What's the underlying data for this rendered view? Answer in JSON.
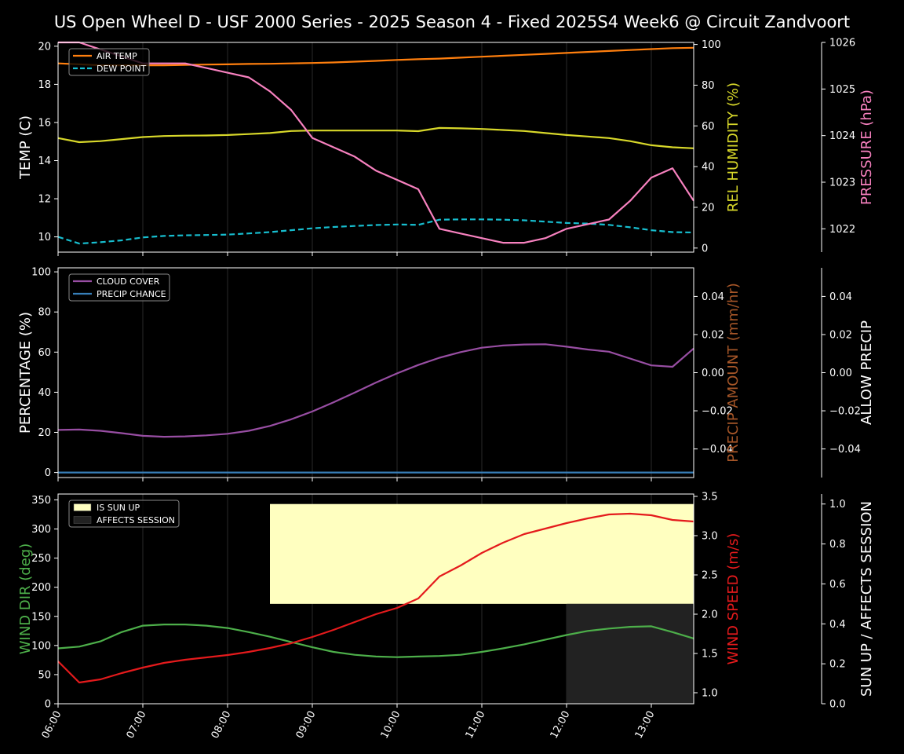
{
  "title": "US Open Wheel D - USF 2000 Series  - 2025 Season 4 - Fixed 2025S4 Week6 @ Circuit Zandvoort",
  "time_labels": [
    "06:00",
    "07:00",
    "08:00",
    "09:00",
    "10:00",
    "11:00",
    "12:00",
    "13:00"
  ],
  "colors": {
    "air_temp": "#ff7f0e",
    "dew_point": "#17becf",
    "humidity": "#d8d82a",
    "pressure": "#f781bf",
    "cloud": "#984ea3",
    "precip_chance": "#377eb8",
    "precip_amount": "#a65628",
    "wind_dir": "#4daf4a",
    "wind_speed": "#e41a1c",
    "sun_up": "#ffffc0",
    "affects_session": "#222222"
  },
  "chart_data": [
    {
      "type": "line",
      "panel": "temperature",
      "x": [
        "06:00",
        "06:15",
        "06:30",
        "06:45",
        "07:00",
        "07:15",
        "07:30",
        "07:45",
        "08:00",
        "08:15",
        "08:30",
        "08:45",
        "09:00",
        "09:15",
        "09:30",
        "09:45",
        "10:00",
        "10:15",
        "10:30",
        "10:45",
        "11:00",
        "11:15",
        "11:30",
        "11:45",
        "12:00",
        "12:15",
        "12:30",
        "12:45",
        "13:00",
        "13:15",
        "13:30"
      ],
      "ylabel_left": "TEMP (C)",
      "ylabel_right": "REL HUMIDITY (%)",
      "ylabel_far": "PRESSURE (hPa)",
      "ylim_left": [
        9.2,
        20.2
      ],
      "ylim_right": [
        -2,
        101
      ],
      "ylim_far": [
        1021.5,
        1026
      ],
      "yticks_left": [
        "10",
        "12",
        "14",
        "16",
        "18",
        "20"
      ],
      "yticks_right": [
        "0",
        "20",
        "40",
        "60",
        "80",
        "100"
      ],
      "yticks_far": [
        "1022",
        "1023",
        "1024",
        "1025",
        "1026"
      ],
      "legend": [
        "AIR TEMP",
        "DEW POINT"
      ],
      "legend_position": "top-left",
      "series": [
        {
          "name": "AIR TEMP",
          "axis": "left",
          "values": [
            19.1,
            19.05,
            19.0,
            19.0,
            19.0,
            19.0,
            19.02,
            19.04,
            19.05,
            19.07,
            19.08,
            19.1,
            19.12,
            19.15,
            19.19,
            19.23,
            19.28,
            19.32,
            19.35,
            19.4,
            19.45,
            19.5,
            19.55,
            19.6,
            19.65,
            19.7,
            19.75,
            19.8,
            19.85,
            19.9,
            19.92
          ]
        },
        {
          "name": "DEW POINT",
          "axis": "left",
          "values": [
            10.0,
            9.65,
            9.72,
            9.82,
            9.97,
            10.05,
            10.08,
            10.1,
            10.12,
            10.18,
            10.25,
            10.35,
            10.45,
            10.52,
            10.57,
            10.62,
            10.65,
            10.63,
            10.9,
            10.92,
            10.92,
            10.9,
            10.87,
            10.8,
            10.73,
            10.7,
            10.63,
            10.5,
            10.35,
            10.25,
            10.23
          ]
        },
        {
          "axis": "right",
          "values": [
            54,
            52,
            52.5,
            53.5,
            54.5,
            55,
            55.2,
            55.3,
            55.5,
            56,
            56.5,
            57.5,
            57.7,
            57.7,
            57.7,
            57.7,
            57.7,
            57.4,
            59,
            58.8,
            58.5,
            58,
            57.5,
            56.5,
            55.5,
            54.8,
            54,
            52.5,
            50.5,
            49.5,
            49
          ]
        },
        {
          "axis": "far",
          "values": [
            1026,
            1026,
            1025.85,
            1025.7,
            1025.55,
            1025.55,
            1025.55,
            1025.45,
            1025.35,
            1025.25,
            1024.95,
            1024.55,
            1023.95,
            1023.75,
            1023.55,
            1023.25,
            1023.05,
            1022.85,
            1022.0,
            1021.9,
            1021.8,
            1021.7,
            1021.7,
            1021.8,
            1022.0,
            1022.1,
            1022.2,
            1022.6,
            1023.1,
            1023.3,
            1022.6
          ]
        }
      ]
    },
    {
      "type": "line",
      "panel": "precipitation",
      "x": [
        "06:00",
        "06:15",
        "06:30",
        "06:45",
        "07:00",
        "07:15",
        "07:30",
        "07:45",
        "08:00",
        "08:15",
        "08:30",
        "08:45",
        "09:00",
        "09:15",
        "09:30",
        "09:45",
        "10:00",
        "10:15",
        "10:30",
        "10:45",
        "11:00",
        "11:15",
        "11:30",
        "11:45",
        "12:00",
        "12:15",
        "12:30",
        "12:45",
        "13:00",
        "13:15",
        "13:30"
      ],
      "ylabel_left": "PERCENTAGE (%)",
      "ylabel_right": "PRECIP AMOUNT (mm/hr)",
      "ylabel_far": "ALLOW PRECIP",
      "ylim_left": [
        -2.5,
        102
      ],
      "ylim_right": [
        -0.055,
        0.055
      ],
      "ylim_far": [
        -0.055,
        0.055
      ],
      "yticks_left": [
        "0",
        "20",
        "40",
        "60",
        "80",
        "100"
      ],
      "yticks_right": [
        "−0.04",
        "−0.02",
        "0.00",
        "0.02",
        "0.04"
      ],
      "yticks_far": [
        "−0.04",
        "−0.02",
        "0.00",
        "0.02",
        "0.04"
      ],
      "legend": [
        "CLOUD COVER",
        "PRECIP CHANCE"
      ],
      "legend_position": "top-left",
      "series": [
        {
          "name": "CLOUD COVER",
          "axis": "left",
          "values": [
            21.2,
            21.4,
            20.8,
            19.6,
            18.3,
            17.8,
            18.0,
            18.5,
            19.3,
            20.8,
            23.2,
            26.5,
            30.4,
            35.0,
            39.8,
            44.8,
            49.4,
            53.6,
            57.2,
            60.0,
            62.2,
            63.3,
            63.8,
            63.9,
            62.7,
            61.3,
            60.2,
            56.8,
            53.4,
            52.7,
            61.8
          ]
        },
        {
          "name": "PRECIP CHANCE",
          "axis": "left",
          "values": [
            0,
            0,
            0,
            0,
            0,
            0,
            0,
            0,
            0,
            0,
            0,
            0,
            0,
            0,
            0,
            0,
            0,
            0,
            0,
            0,
            0,
            0,
            0,
            0,
            0,
            0,
            0,
            0,
            0,
            0,
            0
          ]
        }
      ]
    },
    {
      "type": "line",
      "panel": "wind",
      "x": [
        "06:00",
        "06:15",
        "06:30",
        "06:45",
        "07:00",
        "07:15",
        "07:30",
        "07:45",
        "08:00",
        "08:15",
        "08:30",
        "08:45",
        "09:00",
        "09:15",
        "09:30",
        "09:45",
        "10:00",
        "10:15",
        "10:30",
        "10:45",
        "11:00",
        "11:15",
        "11:30",
        "11:45",
        "12:00",
        "12:15",
        "12:30",
        "12:45",
        "13:00",
        "13:15",
        "13:30"
      ],
      "ylabel_left": "WIND DIR (deg)",
      "ylabel_right": "WIND SPEED (m/s)",
      "ylabel_far": "SUN UP / AFFECTS SESSION",
      "ylim_left": [
        0,
        360
      ],
      "ylim_right": [
        0.86,
        3.53
      ],
      "ylim_far": [
        0,
        1.05
      ],
      "yticks_left": [
        "0",
        "50",
        "100",
        "150",
        "200",
        "250",
        "300",
        "350"
      ],
      "yticks_right": [
        "1.0",
        "1.5",
        "2.0",
        "2.5",
        "3.0",
        "3.5"
      ],
      "yticks_far": [
        "0.0",
        "0.2",
        "0.4",
        "0.6",
        "0.8",
        "1.0"
      ],
      "legend": [
        "IS SUN UP",
        "AFFECTS SESSION"
      ],
      "legend_position": "top-left",
      "sun_up": {
        "start": "08:30",
        "end": "13:30",
        "value": 1
      },
      "affects_session": {
        "start": "12:00",
        "end": "13:30",
        "value": 0.5
      },
      "series": [
        {
          "axis": "left",
          "values": [
            95,
            98,
            107,
            123,
            134,
            136,
            136,
            134,
            130,
            123,
            115,
            106,
            97,
            89,
            84,
            81,
            80,
            81,
            82,
            84,
            89,
            95,
            102,
            110,
            118,
            125,
            129,
            132,
            133,
            123,
            112
          ]
        },
        {
          "axis": "right",
          "values": [
            1.4,
            1.13,
            1.17,
            1.25,
            1.32,
            1.38,
            1.42,
            1.45,
            1.48,
            1.52,
            1.57,
            1.63,
            1.71,
            1.8,
            1.9,
            2.0,
            2.08,
            2.2,
            2.48,
            2.62,
            2.78,
            2.91,
            3.02,
            3.09,
            3.16,
            3.22,
            3.27,
            3.28,
            3.26,
            3.2,
            3.18
          ]
        }
      ]
    }
  ]
}
